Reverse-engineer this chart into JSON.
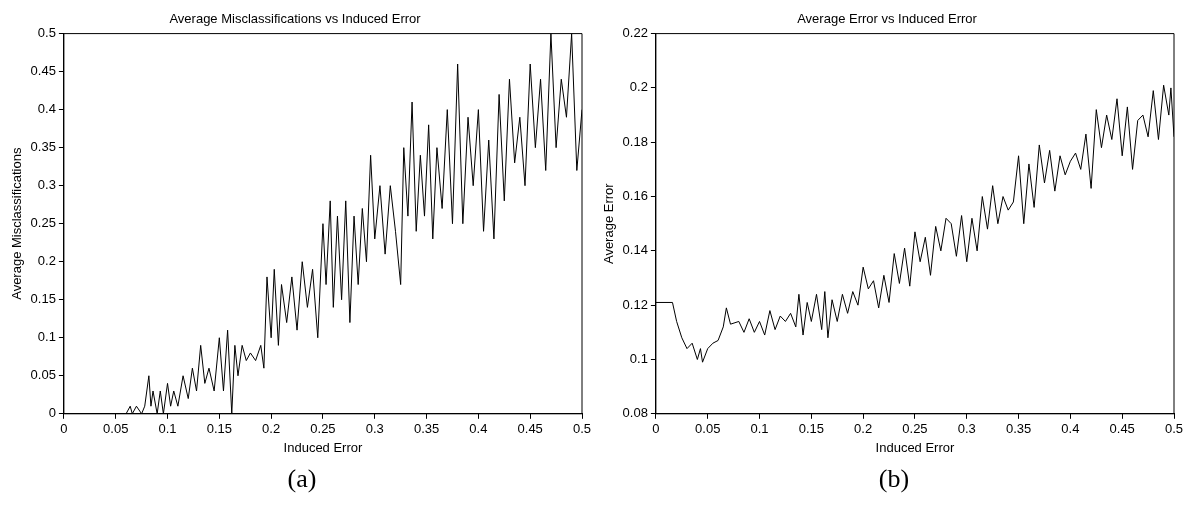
{
  "chart_data": [
    {
      "type": "line",
      "title": "Average Misclassifications vs Induced Error",
      "xlabel": "Induced Error",
      "ylabel": "Average Misclassifications",
      "annotations": [
        "(a)"
      ],
      "x": [
        0,
        0.06,
        0.064,
        0.066,
        0.07,
        0.075,
        0.078,
        0.082,
        0.084,
        0.086,
        0.09,
        0.093,
        0.096,
        0.1,
        0.103,
        0.106,
        0.11,
        0.115,
        0.12,
        0.124,
        0.128,
        0.132,
        0.136,
        0.14,
        0.145,
        0.15,
        0.154,
        0.158,
        0.162,
        0.165,
        0.168,
        0.172,
        0.176,
        0.18,
        0.185,
        0.19,
        0.193,
        0.196,
        0.2,
        0.203,
        0.207,
        0.21,
        0.215,
        0.22,
        0.225,
        0.23,
        0.235,
        0.24,
        0.245,
        0.25,
        0.253,
        0.257,
        0.26,
        0.264,
        0.268,
        0.272,
        0.276,
        0.28,
        0.284,
        0.288,
        0.292,
        0.296,
        0.3,
        0.305,
        0.31,
        0.315,
        0.32,
        0.325,
        0.328,
        0.332,
        0.336,
        0.34,
        0.344,
        0.348,
        0.352,
        0.356,
        0.36,
        0.365,
        0.37,
        0.375,
        0.38,
        0.385,
        0.39,
        0.395,
        0.4,
        0.405,
        0.41,
        0.415,
        0.42,
        0.425,
        0.43,
        0.435,
        0.44,
        0.445,
        0.45,
        0.455,
        0.46,
        0.465,
        0.47,
        0.475,
        0.48,
        0.485,
        0.49,
        0.495,
        0.5
      ],
      "series": [
        {
          "color": "#000000",
          "values": [
            0,
            0,
            0.01,
            0,
            0.01,
            0,
            0.01,
            0.05,
            0.01,
            0.03,
            0,
            0.03,
            0,
            0.04,
            0.01,
            0.03,
            0.01,
            0.05,
            0.02,
            0.06,
            0.03,
            0.09,
            0.04,
            0.06,
            0.03,
            0.1,
            0.03,
            0.11,
            0,
            0.09,
            0.05,
            0.09,
            0.07,
            0.08,
            0.07,
            0.09,
            0.06,
            0.18,
            0.1,
            0.19,
            0.09,
            0.17,
            0.12,
            0.18,
            0.11,
            0.2,
            0.14,
            0.19,
            0.1,
            0.25,
            0.17,
            0.28,
            0.14,
            0.26,
            0.15,
            0.28,
            0.12,
            0.26,
            0.17,
            0.27,
            0.2,
            0.34,
            0.23,
            0.3,
            0.21,
            0.3,
            0.24,
            0.17,
            0.35,
            0.26,
            0.41,
            0.24,
            0.34,
            0.26,
            0.38,
            0.23,
            0.35,
            0.27,
            0.4,
            0.25,
            0.46,
            0.25,
            0.39,
            0.3,
            0.4,
            0.24,
            0.36,
            0.23,
            0.42,
            0.28,
            0.44,
            0.33,
            0.39,
            0.3,
            0.46,
            0.35,
            0.44,
            0.32,
            0.5,
            0.35,
            0.44,
            0.39,
            0.5,
            0.32,
            0.4
          ]
        }
      ],
      "xlim": [
        0,
        0.5
      ],
      "ylim": [
        0,
        0.5
      ],
      "xticks": [
        0,
        0.05,
        0.1,
        0.15,
        0.2,
        0.25,
        0.3,
        0.35,
        0.4,
        0.45,
        0.5
      ],
      "yticks": [
        0,
        0.05,
        0.1,
        0.15,
        0.2,
        0.25,
        0.3,
        0.35,
        0.4,
        0.45,
        0.5
      ],
      "grid": false,
      "marker": "none"
    },
    {
      "type": "line",
      "title": "Average Error vs Induced Error",
      "xlabel": "Induced Error",
      "ylabel": "Average Error",
      "annotations": [
        "(b)"
      ],
      "x": [
        0,
        0.016,
        0.02,
        0.025,
        0.03,
        0.035,
        0.04,
        0.043,
        0.045,
        0.05,
        0.055,
        0.06,
        0.065,
        0.068,
        0.072,
        0.08,
        0.085,
        0.09,
        0.095,
        0.1,
        0.105,
        0.11,
        0.115,
        0.12,
        0.125,
        0.13,
        0.135,
        0.138,
        0.142,
        0.146,
        0.15,
        0.155,
        0.16,
        0.163,
        0.166,
        0.17,
        0.175,
        0.18,
        0.185,
        0.19,
        0.195,
        0.2,
        0.205,
        0.21,
        0.215,
        0.22,
        0.225,
        0.23,
        0.235,
        0.24,
        0.245,
        0.25,
        0.255,
        0.26,
        0.265,
        0.27,
        0.275,
        0.28,
        0.285,
        0.29,
        0.295,
        0.3,
        0.305,
        0.31,
        0.315,
        0.32,
        0.325,
        0.33,
        0.335,
        0.34,
        0.345,
        0.35,
        0.355,
        0.36,
        0.365,
        0.37,
        0.375,
        0.38,
        0.385,
        0.39,
        0.395,
        0.4,
        0.405,
        0.41,
        0.415,
        0.42,
        0.425,
        0.43,
        0.435,
        0.44,
        0.445,
        0.45,
        0.455,
        0.46,
        0.465,
        0.47,
        0.475,
        0.48,
        0.485,
        0.49,
        0.495,
        0.497,
        0.5
      ],
      "series": [
        {
          "color": "#000000",
          "values": [
            0.121,
            0.121,
            0.114,
            0.108,
            0.104,
            0.106,
            0.1,
            0.104,
            0.099,
            0.104,
            0.106,
            0.107,
            0.112,
            0.119,
            0.113,
            0.114,
            0.11,
            0.115,
            0.11,
            0.114,
            0.109,
            0.118,
            0.111,
            0.116,
            0.114,
            0.117,
            0.112,
            0.124,
            0.109,
            0.121,
            0.114,
            0.124,
            0.111,
            0.125,
            0.108,
            0.122,
            0.114,
            0.124,
            0.117,
            0.125,
            0.12,
            0.134,
            0.126,
            0.129,
            0.119,
            0.131,
            0.121,
            0.139,
            0.128,
            0.141,
            0.127,
            0.147,
            0.136,
            0.145,
            0.131,
            0.149,
            0.14,
            0.152,
            0.15,
            0.138,
            0.153,
            0.136,
            0.152,
            0.14,
            0.16,
            0.148,
            0.164,
            0.15,
            0.16,
            0.155,
            0.158,
            0.175,
            0.15,
            0.172,
            0.156,
            0.179,
            0.165,
            0.177,
            0.162,
            0.175,
            0.168,
            0.173,
            0.176,
            0.17,
            0.183,
            0.163,
            0.192,
            0.178,
            0.19,
            0.181,
            0.196,
            0.175,
            0.193,
            0.17,
            0.188,
            0.19,
            0.182,
            0.199,
            0.181,
            0.201,
            0.19,
            0.2,
            0.182
          ]
        }
      ],
      "xlim": [
        0,
        0.5
      ],
      "ylim": [
        0.08,
        0.22
      ],
      "xticks": [
        0,
        0.05,
        0.1,
        0.15,
        0.2,
        0.25,
        0.3,
        0.35,
        0.4,
        0.45,
        0.5
      ],
      "yticks": [
        0.08,
        0.1,
        0.12,
        0.14,
        0.16,
        0.18,
        0.2,
        0.22
      ],
      "grid": false,
      "marker": "none"
    }
  ]
}
